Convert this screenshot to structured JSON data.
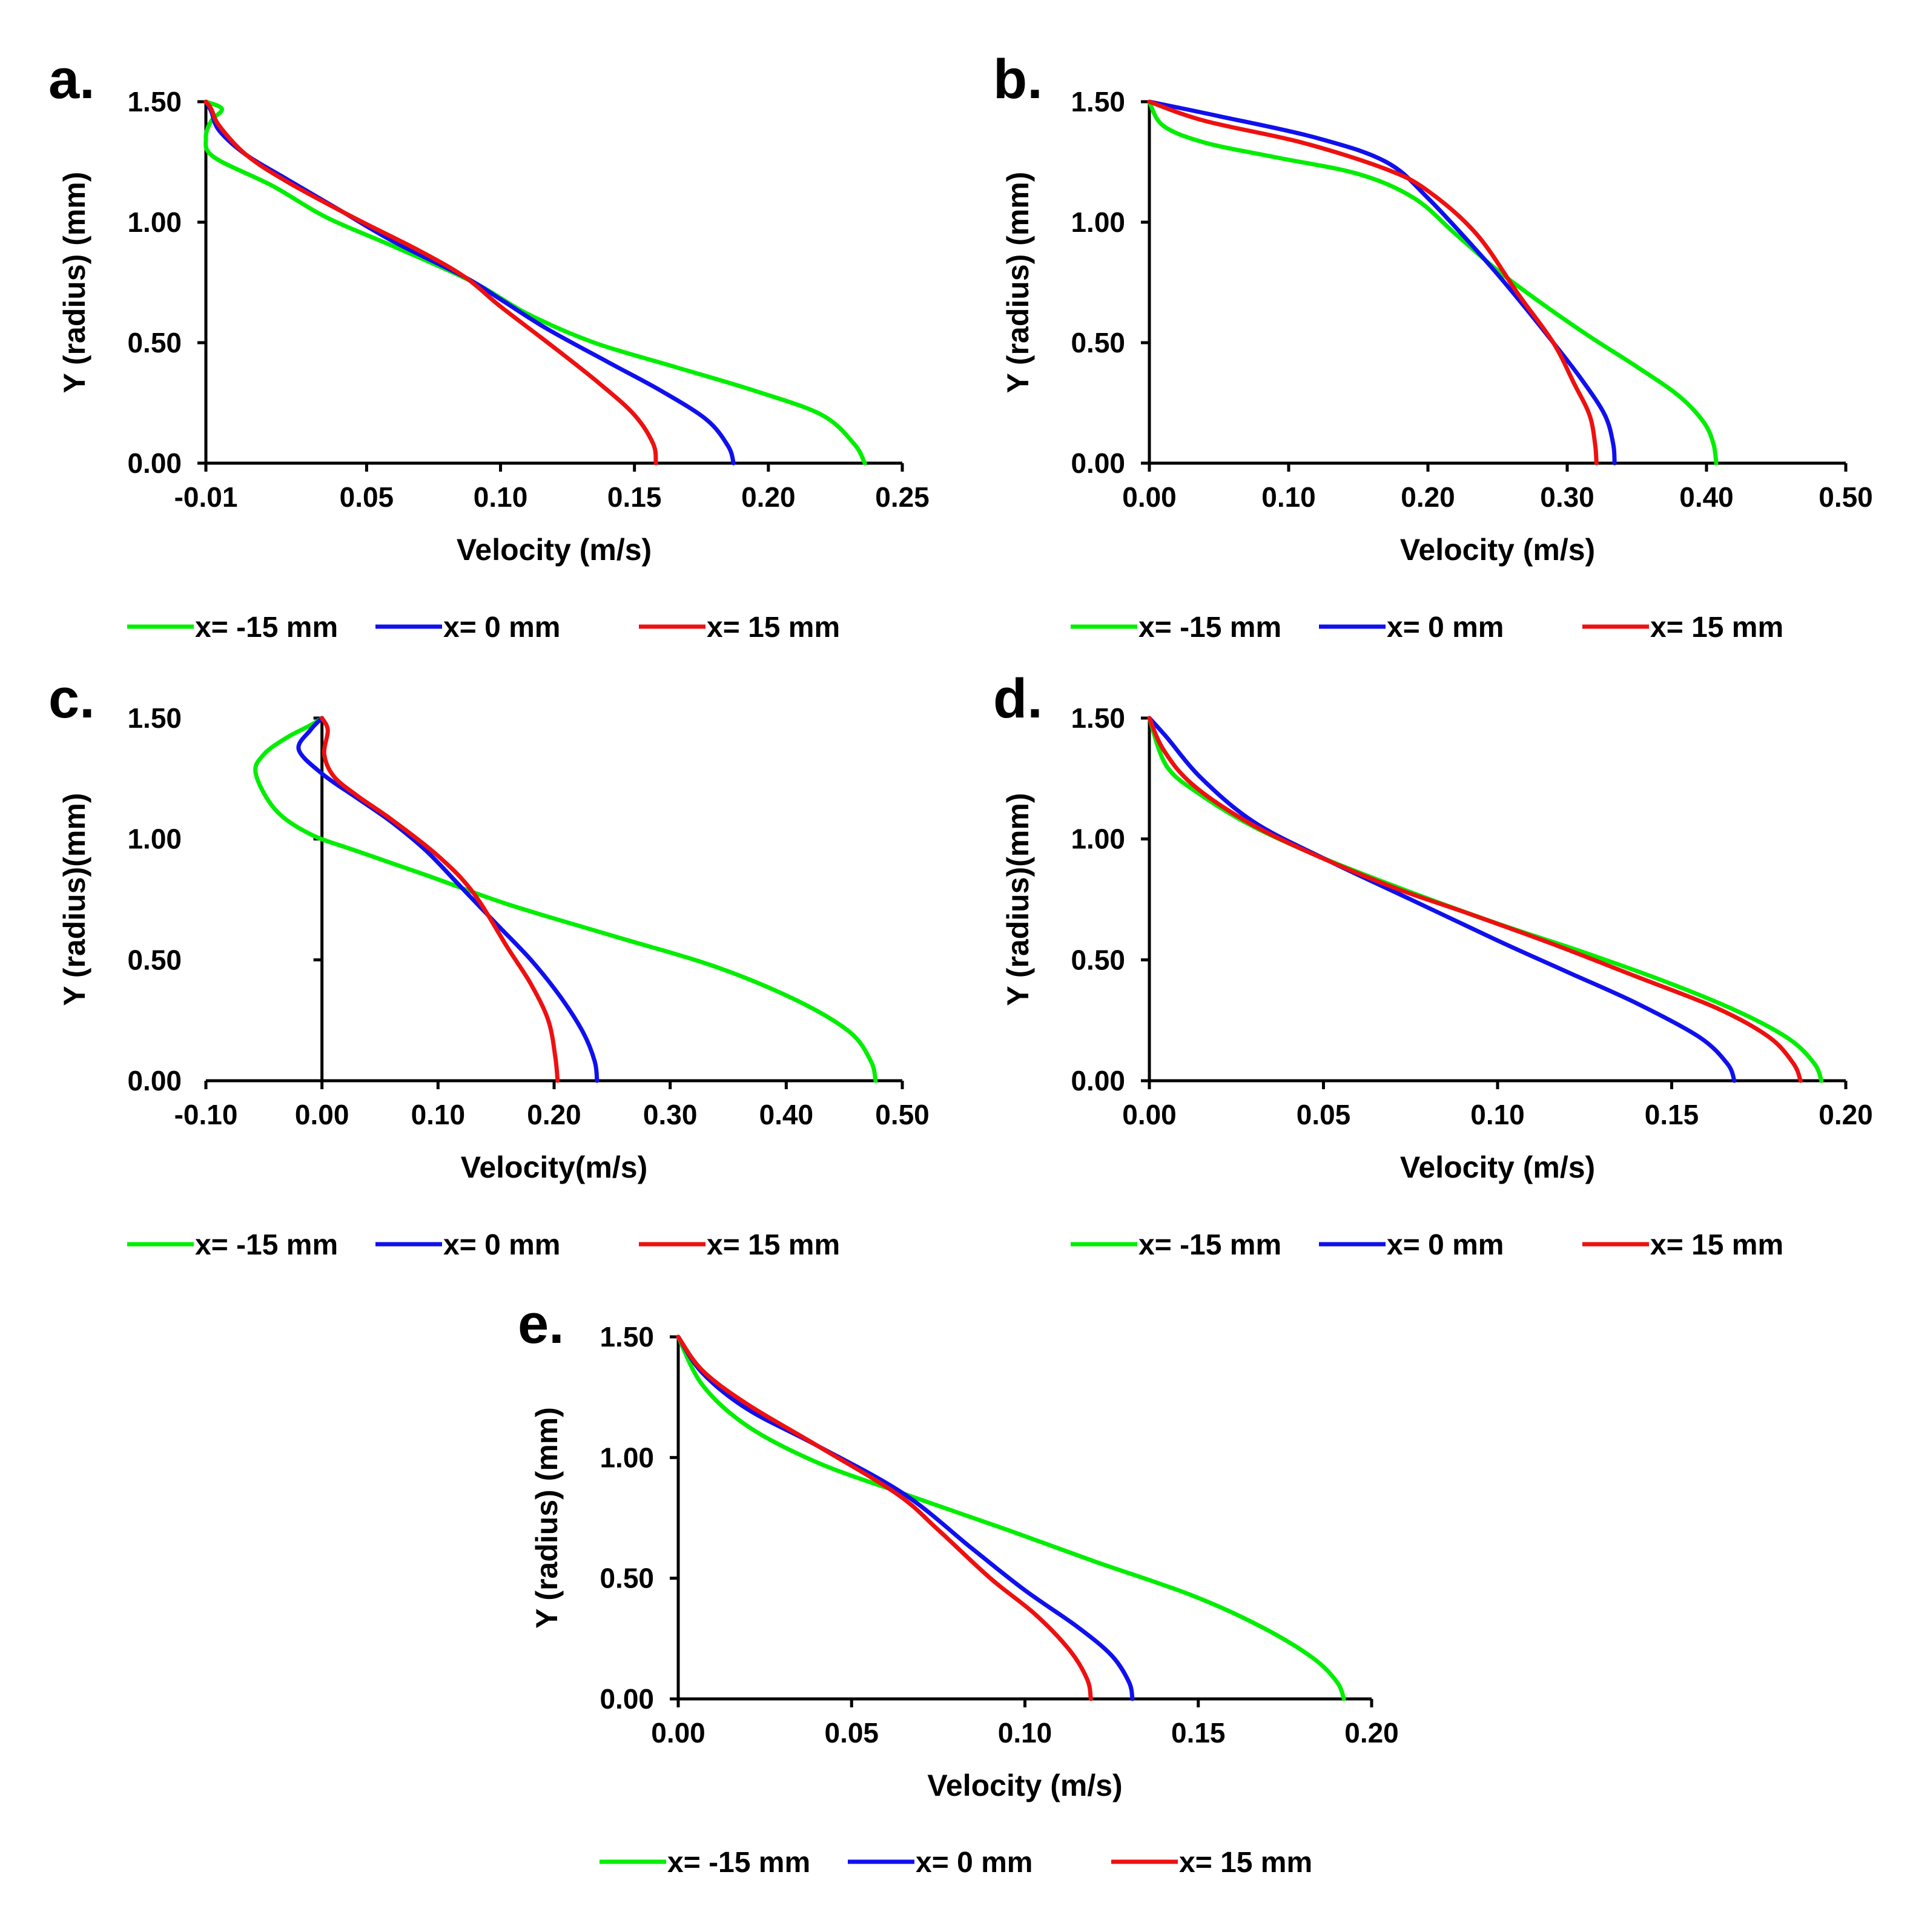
{
  "colors": {
    "green": "#00ee00",
    "blue": "#1010ee",
    "red": "#ee1010"
  },
  "legend": [
    "x= -15 mm",
    "x= 0 mm",
    "x= 15 mm"
  ],
  "chart_data": [
    {
      "id": "a",
      "label": "a.",
      "type": "line",
      "xlabel": "Velocity (m/s)",
      "ylabel": "Y (radius) (mm)",
      "xlim": [
        -0.01,
        0.25
      ],
      "ylim": [
        0,
        1.5
      ],
      "xticks": [
        -0.01,
        0.05,
        0.1,
        0.15,
        0.2,
        0.25
      ],
      "xtick_labels": [
        "-0.01",
        "0.05",
        "0.10",
        "0.15",
        "0.20",
        "0.25"
      ],
      "yticks": [
        0,
        0.5,
        1.0,
        1.5
      ],
      "ytick_labels": [
        "0.00",
        "0.50",
        "1.00",
        "1.50"
      ],
      "y_axis_at": -0.01,
      "series": [
        {
          "name": "x= -15 mm",
          "color": "green",
          "points": [
            [
              0.236,
              0
            ],
            [
              0.232,
              0.08
            ],
            [
              0.22,
              0.2
            ],
            [
              0.195,
              0.3
            ],
            [
              0.165,
              0.4
            ],
            [
              0.135,
              0.5
            ],
            [
              0.11,
              0.62
            ],
            [
              0.09,
              0.75
            ],
            [
              0.06,
              0.9
            ],
            [
              0.035,
              1.02
            ],
            [
              0.015,
              1.15
            ],
            [
              -0.007,
              1.27
            ],
            [
              -0.01,
              1.35
            ],
            [
              -0.008,
              1.42
            ],
            [
              -0.004,
              1.47
            ],
            [
              -0.01,
              1.5
            ]
          ]
        },
        {
          "name": "x= 0 mm",
          "color": "blue",
          "points": [
            [
              0.187,
              0
            ],
            [
              0.185,
              0.07
            ],
            [
              0.177,
              0.18
            ],
            [
              0.16,
              0.3
            ],
            [
              0.14,
              0.42
            ],
            [
              0.117,
              0.56
            ],
            [
              0.1,
              0.68
            ],
            [
              0.087,
              0.77
            ],
            [
              0.06,
              0.92
            ],
            [
              0.04,
              1.05
            ],
            [
              0.02,
              1.18
            ],
            [
              0.005,
              1.28
            ],
            [
              -0.005,
              1.38
            ],
            [
              -0.008,
              1.46
            ],
            [
              -0.01,
              1.5
            ]
          ]
        },
        {
          "name": "x= 15 mm",
          "color": "red",
          "points": [
            [
              0.158,
              0
            ],
            [
              0.157,
              0.08
            ],
            [
              0.15,
              0.2
            ],
            [
              0.137,
              0.33
            ],
            [
              0.12,
              0.48
            ],
            [
              0.1,
              0.65
            ],
            [
              0.087,
              0.77
            ],
            [
              0.07,
              0.88
            ],
            [
              0.045,
              1.02
            ],
            [
              0.02,
              1.17
            ],
            [
              0.005,
              1.28
            ],
            [
              -0.005,
              1.4
            ],
            [
              -0.008,
              1.47
            ],
            [
              -0.01,
              1.5
            ]
          ]
        }
      ]
    },
    {
      "id": "b",
      "label": "b.",
      "type": "line",
      "xlabel": "Velocity (m/s)",
      "ylabel": "Y (radius) (mm)",
      "xlim": [
        0,
        0.5
      ],
      "ylim": [
        0,
        1.5
      ],
      "xticks": [
        0,
        0.1,
        0.2,
        0.3,
        0.4,
        0.5
      ],
      "xtick_labels": [
        "0.00",
        "0.10",
        "0.20",
        "0.30",
        "0.40",
        "0.50"
      ],
      "yticks": [
        0,
        0.5,
        1.0,
        1.5
      ],
      "ytick_labels": [
        "0.00",
        "0.50",
        "1.00",
        "1.50"
      ],
      "y_axis_at": 0,
      "series": [
        {
          "name": "x= -15 mm",
          "color": "green",
          "points": [
            [
              0.407,
              0
            ],
            [
              0.405,
              0.08
            ],
            [
              0.398,
              0.17
            ],
            [
              0.38,
              0.28
            ],
            [
              0.35,
              0.4
            ],
            [
              0.315,
              0.53
            ],
            [
              0.28,
              0.67
            ],
            [
              0.25,
              0.8
            ],
            [
              0.22,
              0.95
            ],
            [
              0.19,
              1.1
            ],
            [
              0.15,
              1.2
            ],
            [
              0.09,
              1.27
            ],
            [
              0.04,
              1.33
            ],
            [
              0.01,
              1.4
            ],
            [
              0,
              1.5
            ]
          ]
        },
        {
          "name": "x= 0 mm",
          "color": "blue",
          "points": [
            [
              0.334,
              0
            ],
            [
              0.333,
              0.08
            ],
            [
              0.327,
              0.2
            ],
            [
              0.31,
              0.35
            ],
            [
              0.29,
              0.5
            ],
            [
              0.265,
              0.68
            ],
            [
              0.24,
              0.85
            ],
            [
              0.2,
              1.1
            ],
            [
              0.17,
              1.25
            ],
            [
              0.12,
              1.35
            ],
            [
              0.05,
              1.44
            ],
            [
              0,
              1.5
            ]
          ]
        },
        {
          "name": "x= 15 mm",
          "color": "red",
          "points": [
            [
              0.321,
              0
            ],
            [
              0.32,
              0.08
            ],
            [
              0.316,
              0.2
            ],
            [
              0.305,
              0.33
            ],
            [
              0.29,
              0.5
            ],
            [
              0.265,
              0.7
            ],
            [
              0.235,
              0.95
            ],
            [
              0.2,
              1.13
            ],
            [
              0.17,
              1.22
            ],
            [
              0.11,
              1.33
            ],
            [
              0.04,
              1.42
            ],
            [
              0,
              1.5
            ]
          ]
        }
      ]
    },
    {
      "id": "c",
      "label": "c.",
      "type": "line",
      "xlabel": "Velocity(m/s)",
      "ylabel": "Y (radius)(mm)",
      "xlim": [
        -0.1,
        0.5
      ],
      "ylim": [
        0,
        1.5
      ],
      "xticks": [
        -0.1,
        0,
        0.1,
        0.2,
        0.3,
        0.4,
        0.5
      ],
      "xtick_labels": [
        "-0.10",
        "0.00",
        "0.10",
        "0.20",
        "0.30",
        "0.40",
        "0.50"
      ],
      "yticks": [
        0,
        0.5,
        1.0,
        1.5
      ],
      "ytick_labels": [
        "0.00",
        "0.50",
        "1.00",
        "1.50"
      ],
      "y_axis_at": 0,
      "series": [
        {
          "name": "x= -15 mm",
          "color": "green",
          "points": [
            [
              0.477,
              0
            ],
            [
              0.473,
              0.08
            ],
            [
              0.455,
              0.2
            ],
            [
              0.41,
              0.33
            ],
            [
              0.34,
              0.47
            ],
            [
              0.25,
              0.6
            ],
            [
              0.16,
              0.73
            ],
            [
              0.09,
              0.85
            ],
            [
              0.03,
              0.95
            ],
            [
              -0.01,
              1.02
            ],
            [
              -0.04,
              1.12
            ],
            [
              -0.057,
              1.27
            ],
            [
              -0.05,
              1.35
            ],
            [
              -0.03,
              1.42
            ],
            [
              -0.01,
              1.47
            ],
            [
              0,
              1.5
            ]
          ]
        },
        {
          "name": "x= 0 mm",
          "color": "blue",
          "points": [
            [
              0.237,
              0
            ],
            [
              0.235,
              0.08
            ],
            [
              0.225,
              0.2
            ],
            [
              0.205,
              0.35
            ],
            [
              0.18,
              0.5
            ],
            [
              0.15,
              0.65
            ],
            [
              0.12,
              0.8
            ],
            [
              0.09,
              0.95
            ],
            [
              0.06,
              1.07
            ],
            [
              0.03,
              1.17
            ],
            [
              0,
              1.27
            ],
            [
              -0.02,
              1.37
            ],
            [
              -0.01,
              1.45
            ],
            [
              0,
              1.5
            ]
          ]
        },
        {
          "name": "x= 15 mm",
          "color": "red",
          "points": [
            [
              0.203,
              0
            ],
            [
              0.201,
              0.1
            ],
            [
              0.195,
              0.25
            ],
            [
              0.18,
              0.4
            ],
            [
              0.16,
              0.55
            ],
            [
              0.13,
              0.78
            ],
            [
              0.1,
              0.93
            ],
            [
              0.06,
              1.08
            ],
            [
              0.03,
              1.18
            ],
            [
              0.01,
              1.26
            ],
            [
              0.002,
              1.35
            ],
            [
              0.005,
              1.45
            ],
            [
              0,
              1.5
            ]
          ]
        }
      ]
    },
    {
      "id": "d",
      "label": "d.",
      "type": "line",
      "xlabel": "Velocity (m/s)",
      "ylabel": "Y (radius)(mm)",
      "xlim": [
        0,
        0.2
      ],
      "ylim": [
        0,
        1.5
      ],
      "xticks": [
        0,
        0.05,
        0.1,
        0.15,
        0.2
      ],
      "xtick_labels": [
        "0.00",
        "0.05",
        "0.10",
        "0.15",
        "0.20"
      ],
      "yticks": [
        0,
        0.5,
        1.0,
        1.5
      ],
      "ytick_labels": [
        "0.00",
        "0.50",
        "1.00",
        "1.50"
      ],
      "y_axis_at": 0,
      "series": [
        {
          "name": "x= -15 mm",
          "color": "green",
          "points": [
            [
              0.193,
              0
            ],
            [
              0.191,
              0.07
            ],
            [
              0.184,
              0.17
            ],
            [
              0.17,
              0.28
            ],
            [
              0.15,
              0.4
            ],
            [
              0.125,
              0.53
            ],
            [
              0.1,
              0.65
            ],
            [
              0.075,
              0.78
            ],
            [
              0.05,
              0.92
            ],
            [
              0.03,
              1.05
            ],
            [
              0.015,
              1.18
            ],
            [
              0.005,
              1.3
            ],
            [
              0,
              1.5
            ]
          ]
        },
        {
          "name": "x= 0 mm",
          "color": "blue",
          "points": [
            [
              0.168,
              0
            ],
            [
              0.166,
              0.07
            ],
            [
              0.158,
              0.18
            ],
            [
              0.14,
              0.32
            ],
            [
              0.12,
              0.45
            ],
            [
              0.1,
              0.58
            ],
            [
              0.075,
              0.75
            ],
            [
              0.05,
              0.92
            ],
            [
              0.03,
              1.07
            ],
            [
              0.015,
              1.25
            ],
            [
              0.005,
              1.42
            ],
            [
              0,
              1.5
            ]
          ]
        },
        {
          "name": "x= 15 mm",
          "color": "red",
          "points": [
            [
              0.187,
              0
            ],
            [
              0.185,
              0.07
            ],
            [
              0.178,
              0.18
            ],
            [
              0.163,
              0.3
            ],
            [
              0.14,
              0.43
            ],
            [
              0.115,
              0.57
            ],
            [
              0.09,
              0.7
            ],
            [
              0.07,
              0.8
            ],
            [
              0.045,
              0.95
            ],
            [
              0.027,
              1.08
            ],
            [
              0.012,
              1.23
            ],
            [
              0.004,
              1.37
            ],
            [
              0,
              1.5
            ]
          ]
        }
      ]
    },
    {
      "id": "e",
      "label": "e.",
      "type": "line",
      "xlabel": "Velocity (m/s)",
      "ylabel": "Y (radius) (mm)",
      "xlim": [
        0,
        0.2
      ],
      "ylim": [
        0,
        1.5
      ],
      "xticks": [
        0,
        0.05,
        0.1,
        0.15,
        0.2
      ],
      "xtick_labels": [
        "0.00",
        "0.05",
        "0.10",
        "0.15",
        "0.20"
      ],
      "yticks": [
        0,
        0.5,
        1.0,
        1.5
      ],
      "ytick_labels": [
        "0.00",
        "0.50",
        "1.00",
        "1.50"
      ],
      "y_axis_at": 0,
      "series": [
        {
          "name": "x= -15 mm",
          "color": "green",
          "points": [
            [
              0.192,
              0
            ],
            [
              0.19,
              0.07
            ],
            [
              0.183,
              0.17
            ],
            [
              0.168,
              0.3
            ],
            [
              0.148,
              0.43
            ],
            [
              0.12,
              0.57
            ],
            [
              0.095,
              0.7
            ],
            [
              0.065,
              0.85
            ],
            [
              0.04,
              0.98
            ],
            [
              0.02,
              1.13
            ],
            [
              0.007,
              1.3
            ],
            [
              0,
              1.5
            ]
          ]
        },
        {
          "name": "x= 0 mm",
          "color": "blue",
          "points": [
            [
              0.131,
              0
            ],
            [
              0.13,
              0.07
            ],
            [
              0.125,
              0.18
            ],
            [
              0.115,
              0.3
            ],
            [
              0.1,
              0.45
            ],
            [
              0.085,
              0.62
            ],
            [
              0.065,
              0.85
            ],
            [
              0.04,
              1.05
            ],
            [
              0.02,
              1.2
            ],
            [
              0.007,
              1.35
            ],
            [
              0,
              1.5
            ]
          ]
        },
        {
          "name": "x= 15 mm",
          "color": "red",
          "points": [
            [
              0.119,
              0
            ],
            [
              0.118,
              0.08
            ],
            [
              0.113,
              0.2
            ],
            [
              0.103,
              0.35
            ],
            [
              0.09,
              0.5
            ],
            [
              0.075,
              0.7
            ],
            [
              0.063,
              0.85
            ],
            [
              0.04,
              1.05
            ],
            [
              0.02,
              1.22
            ],
            [
              0.007,
              1.36
            ],
            [
              0,
              1.5
            ]
          ]
        }
      ]
    }
  ]
}
